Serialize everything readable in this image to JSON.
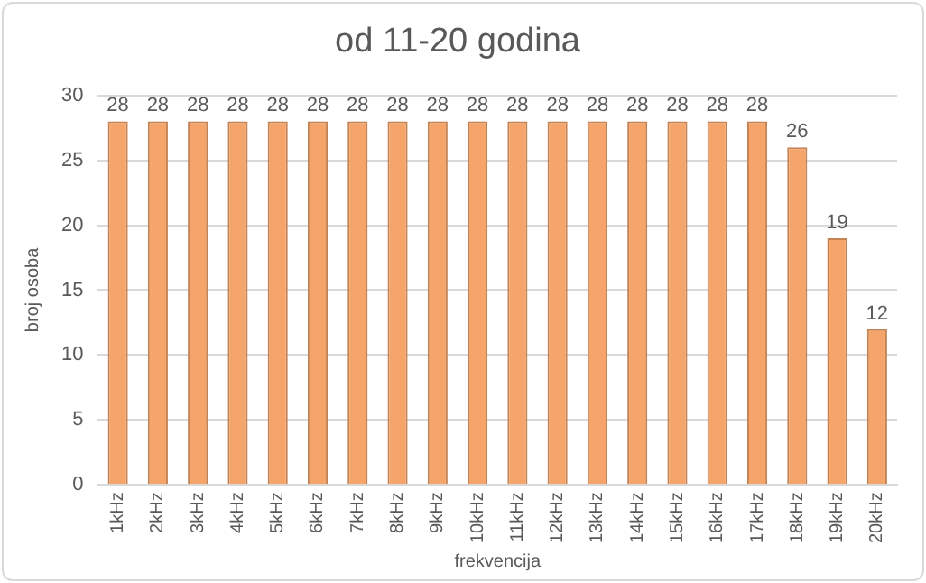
{
  "chart_data": {
    "type": "bar",
    "title": "od 11-20 godina",
    "xlabel": "frekvencija",
    "ylabel": "broj osoba",
    "categories": [
      "1kHz",
      "2kHz",
      "3kHz",
      "4kHz",
      "5kHz",
      "6kHz",
      "7kHz",
      "8kHz",
      "9kHz",
      "10kHz",
      "11kHz",
      "12kHz",
      "13kHz",
      "14kHz",
      "15kHz",
      "16kHz",
      "17kHz",
      "18kHz",
      "19kHz",
      "20kHz"
    ],
    "values": [
      28,
      28,
      28,
      28,
      28,
      28,
      28,
      28,
      28,
      28,
      28,
      28,
      28,
      28,
      28,
      28,
      28,
      26,
      19,
      12
    ],
    "color": "#f5a46a",
    "ylim": [
      0,
      30
    ],
    "yticks": [
      0,
      5,
      10,
      15,
      20,
      25,
      30
    ],
    "grid": "y",
    "data_labels": true
  }
}
